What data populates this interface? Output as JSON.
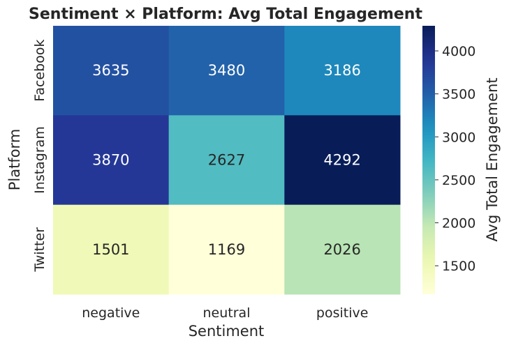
{
  "chart_data": {
    "type": "heatmap",
    "title": "Sentiment × Platform: Avg Total Engagement",
    "xlabel": "Sentiment",
    "ylabel": "Platform",
    "x_categories": [
      "negative",
      "neutral",
      "positive"
    ],
    "y_categories": [
      "Facebook",
      "Instagram",
      "Twitter"
    ],
    "values": [
      [
        3635,
        3480,
        3186
      ],
      [
        3870,
        2627,
        4292
      ],
      [
        1501,
        1169,
        2026
      ]
    ],
    "colorbar": {
      "label": "Avg Total Engagement",
      "min": 1169,
      "max": 4292,
      "ticks": [
        1500,
        2000,
        2500,
        3000,
        3500,
        4000
      ]
    },
    "colormap": "YlGnBu",
    "grid": false
  }
}
